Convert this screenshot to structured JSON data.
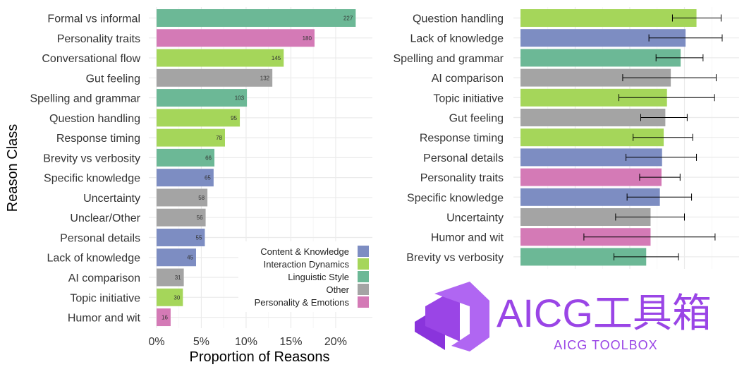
{
  "colors": {
    "Content & Knowledge": "#7d8dc2",
    "Interaction Dynamics": "#a5d65a",
    "Linguistic Style": "#6cb896",
    "Other": "#a4a4a4",
    "Personality & Emotions": "#d47ab6",
    "watermark": "#9a45e6"
  },
  "chart_data": [
    {
      "type": "bar",
      "orientation": "horizontal",
      "xlabel": "Proportion of Reasons",
      "ylabel": "Reason Class",
      "xlim": [
        0,
        0.23
      ],
      "x_ticks": [
        0,
        0.05,
        0.1,
        0.15,
        0.2
      ],
      "x_tick_labels": [
        "0%",
        "5%",
        "10%",
        "15%",
        "20%"
      ],
      "grid": true,
      "legend_position": "bottom-right",
      "legend": [
        "Content & Knowledge",
        "Interaction Dynamics",
        "Linguistic Style",
        "Other",
        "Personality & Emotions"
      ],
      "categories": [
        "Formal vs informal",
        "Personality traits",
        "Conversational flow",
        "Gut feeling",
        "Spelling and grammar",
        "Question handling",
        "Response timing",
        "Brevity vs verbosity",
        "Specific knowledge",
        "Uncertainty",
        "Unclear/Other",
        "Personal details",
        "Lack of knowledge",
        "AI comparison",
        "Topic initiative",
        "Humor and wit"
      ],
      "groups": [
        "Linguistic Style",
        "Personality & Emotions",
        "Interaction Dynamics",
        "Other",
        "Linguistic Style",
        "Interaction Dynamics",
        "Interaction Dynamics",
        "Linguistic Style",
        "Content & Knowledge",
        "Other",
        "Other",
        "Content & Knowledge",
        "Content & Knowledge",
        "Other",
        "Interaction Dynamics",
        "Personality & Emotions"
      ],
      "counts": [
        227,
        180,
        145,
        132,
        103,
        95,
        78,
        66,
        65,
        58,
        56,
        55,
        45,
        31,
        30,
        16
      ],
      "values": [
        0.2224,
        0.1764,
        0.142,
        0.1293,
        0.1009,
        0.093,
        0.0764,
        0.0646,
        0.0637,
        0.0568,
        0.0548,
        0.0539,
        0.0441,
        0.0304,
        0.0294,
        0.0157
      ]
    },
    {
      "type": "bar",
      "orientation": "horizontal",
      "grid": true,
      "categories": [
        "Question handling",
        "Lack of knowledge",
        "Spelling and grammar",
        "AI comparison",
        "Topic initiative",
        "Gut feeling",
        "Response timing",
        "Personal details",
        "Personality traits",
        "Specific knowledge",
        "Uncertainty",
        "Humor and wit",
        "Brevity vs verbosity"
      ],
      "groups": [
        "Interaction Dynamics",
        "Content & Knowledge",
        "Linguistic Style",
        "Other",
        "Interaction Dynamics",
        "Other",
        "Interaction Dynamics",
        "Content & Knowledge",
        "Personality & Emotions",
        "Content & Knowledge",
        "Other",
        "Personality & Emotions",
        "Linguistic Style"
      ],
      "xlim": [
        0,
        0.4
      ],
      "values": [
        0.322,
        0.302,
        0.293,
        0.275,
        0.268,
        0.265,
        0.262,
        0.259,
        0.258,
        0.255,
        0.238,
        0.238,
        0.23
      ],
      "error_low": [
        0.278,
        0.235,
        0.248,
        0.187,
        0.18,
        0.22,
        0.206,
        0.193,
        0.218,
        0.195,
        0.174,
        0.116,
        0.171
      ],
      "error_high": [
        0.367,
        0.369,
        0.334,
        0.358,
        0.355,
        0.305,
        0.315,
        0.322,
        0.292,
        0.313,
        0.3,
        0.356,
        0.289
      ]
    }
  ],
  "watermark": {
    "title": "AICG工具箱",
    "subtitle": "AICG TOOLBOX"
  }
}
